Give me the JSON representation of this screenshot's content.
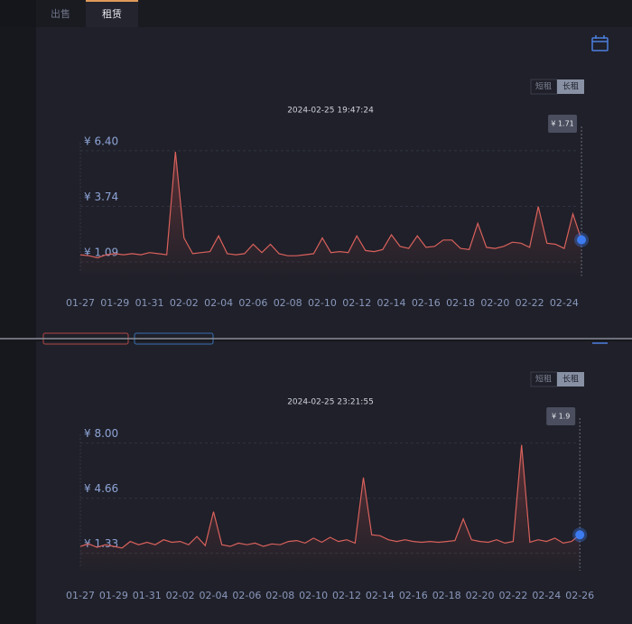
{
  "tabs": [
    "出售",
    "租赁"
  ],
  "toggle": [
    "短租",
    "长租"
  ],
  "chart_data": [
    {
      "type": "line",
      "subtitle": "2024-02-25 19:47:24",
      "tooltip": {
        "value": 1.71,
        "label": "¥ 1.71"
      },
      "categories": [
        "01-27",
        null,
        null,
        null,
        "01-29",
        null,
        null,
        null,
        "01-31",
        null,
        null,
        null,
        "02-02",
        null,
        null,
        null,
        "02-04",
        null,
        null,
        null,
        "02-06",
        null,
        null,
        null,
        "02-08",
        null,
        null,
        null,
        "02-10",
        null,
        null,
        null,
        "02-12",
        null,
        null,
        null,
        "02-14",
        null,
        null,
        null,
        "02-16",
        null,
        null,
        null,
        "02-18",
        null,
        null,
        null,
        "02-20",
        null,
        null,
        null,
        "02-22",
        null,
        null,
        null,
        "02-24",
        null,
        null
      ],
      "series": [
        {
          "color": "#d9615c",
          "values": [
            1.0,
            0.95,
            0.85,
            1.0,
            1.05,
            1.0,
            1.05,
            1.0,
            1.1,
            1.05,
            1.0,
            5.92,
            1.8,
            1.05,
            1.1,
            1.15,
            1.9,
            1.05,
            1.0,
            1.05,
            1.5,
            1.1,
            1.5,
            1.05,
            0.95,
            0.95,
            1.0,
            1.05,
            1.8,
            1.1,
            1.15,
            1.1,
            1.9,
            1.2,
            1.15,
            1.25,
            1.95,
            1.4,
            1.3,
            1.9,
            1.35,
            1.4,
            1.7,
            1.7,
            1.3,
            1.25,
            2.5,
            1.35,
            1.3,
            1.4,
            1.6,
            1.55,
            1.35,
            3.3,
            1.55,
            1.5,
            1.3,
            2.95,
            1.71
          ]
        }
      ],
      "ylim": [
        0.2,
        7
      ],
      "yticks": [
        {
          "value": 6.4,
          "label": "¥ 6.40"
        },
        {
          "value": 3.74,
          "label": "¥ 3.74"
        },
        {
          "value": 1.09,
          "label": "¥ 1.09"
        }
      ],
      "grid": true
    },
    {
      "type": "line",
      "subtitle": "2024-02-25 23:21:55",
      "tooltip": {
        "value": 1.9,
        "label": "¥ 1.9"
      },
      "categories": [
        "01-27",
        null,
        null,
        null,
        "01-29",
        null,
        null,
        null,
        "01-31",
        null,
        null,
        null,
        "02-02",
        null,
        null,
        null,
        "02-04",
        null,
        null,
        null,
        "02-06",
        null,
        null,
        null,
        "02-08",
        null,
        null,
        null,
        "02-10",
        null,
        null,
        null,
        "02-12",
        null,
        null,
        null,
        "02-14",
        null,
        null,
        null,
        "02-16",
        null,
        null,
        null,
        "02-18",
        null,
        null,
        null,
        "02-20",
        null,
        null,
        null,
        "02-22",
        null,
        null,
        null,
        "02-24",
        null,
        null,
        null,
        "02-26"
      ],
      "series": [
        {
          "color": "#d9615c",
          "values": [
            1.2,
            1.35,
            1.15,
            1.3,
            1.2,
            1.1,
            1.5,
            1.3,
            1.45,
            1.3,
            1.6,
            1.45,
            1.5,
            1.3,
            1.8,
            1.25,
            3.3,
            1.3,
            1.2,
            1.4,
            1.3,
            1.4,
            1.2,
            1.35,
            1.3,
            1.5,
            1.55,
            1.4,
            1.7,
            1.45,
            1.75,
            1.5,
            1.6,
            1.4,
            5.37,
            1.9,
            1.85,
            1.6,
            1.5,
            1.6,
            1.5,
            1.45,
            1.5,
            1.45,
            1.5,
            1.55,
            2.86,
            1.6,
            1.5,
            1.45,
            1.6,
            1.4,
            1.5,
            7.34,
            1.45,
            1.6,
            1.5,
            1.7,
            1.4,
            1.5,
            1.9
          ]
        }
      ],
      "ylim": [
        0,
        8.8
      ],
      "yticks": [
        {
          "value": 8,
          "label": "¥ 8.00"
        },
        {
          "value": 4.66,
          "label": "¥ 4.66"
        },
        {
          "value": 1.33,
          "label": "¥ 1.33"
        }
      ],
      "grid": true
    }
  ]
}
